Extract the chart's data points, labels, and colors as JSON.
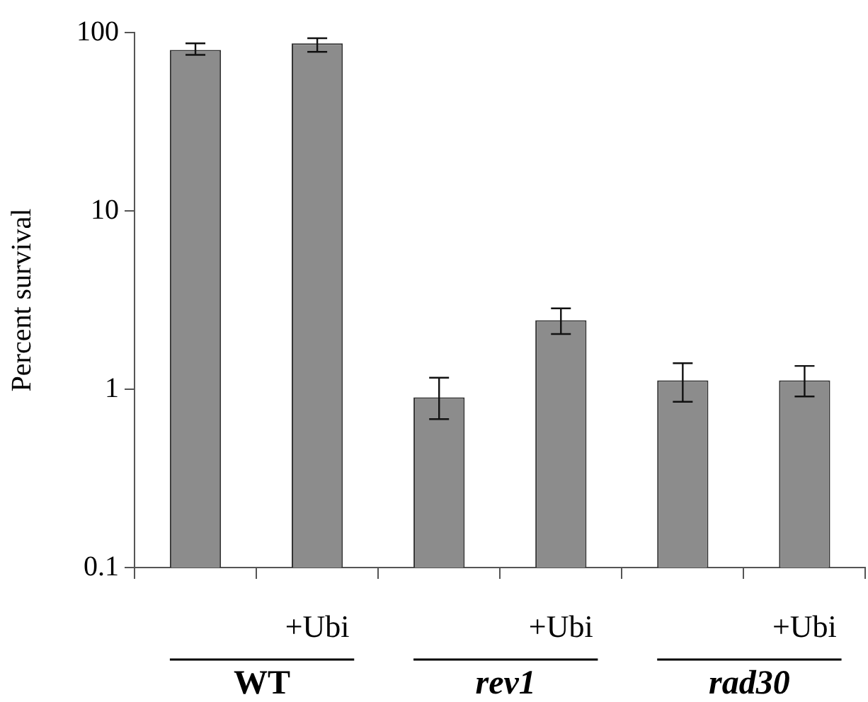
{
  "chart_data": {
    "type": "bar",
    "ylabel": "Percent survival",
    "categories": [
      null,
      "+Ubi",
      null,
      "+Ubi",
      null,
      "+Ubi"
    ],
    "values": [
      80,
      87,
      0.9,
      2.44,
      1.12,
      1.12
    ],
    "errors": [
      [
        75,
        87
      ],
      [
        78,
        93
      ],
      [
        0.68,
        1.16
      ],
      [
        2.04,
        2.84
      ],
      [
        0.85,
        1.4
      ],
      [
        0.91,
        1.35
      ]
    ],
    "color": "#8c8c8c",
    "log": "y",
    "ylim": [
      0.1,
      100
    ],
    "yticks": [
      0.1,
      1,
      10,
      100
    ],
    "grid": false,
    "annotations": [
      "WT",
      "rev1",
      "rad30"
    ]
  }
}
